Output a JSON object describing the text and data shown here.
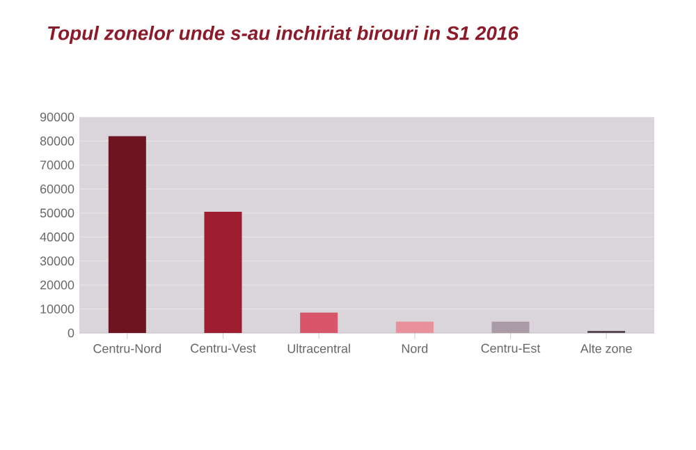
{
  "chart_data": {
    "type": "bar",
    "title": "Topul zonelor unde s-au inchiriat birouri in S1 2016",
    "categories": [
      "Centru-Nord",
      "Centru-Vest",
      "Ultracentral",
      "Nord",
      "Centru-Est",
      "Alte zone"
    ],
    "values": [
      82000,
      50500,
      8500,
      4700,
      4700,
      900
    ],
    "colors": [
      "#6e1420",
      "#9e1c30",
      "#d9566a",
      "#e8909c",
      "#a99aa6",
      "#5a4a55"
    ],
    "ylim": [
      0,
      90000
    ],
    "yticks": [
      0,
      10000,
      20000,
      30000,
      40000,
      50000,
      60000,
      70000,
      80000,
      90000
    ],
    "grid": "y"
  }
}
